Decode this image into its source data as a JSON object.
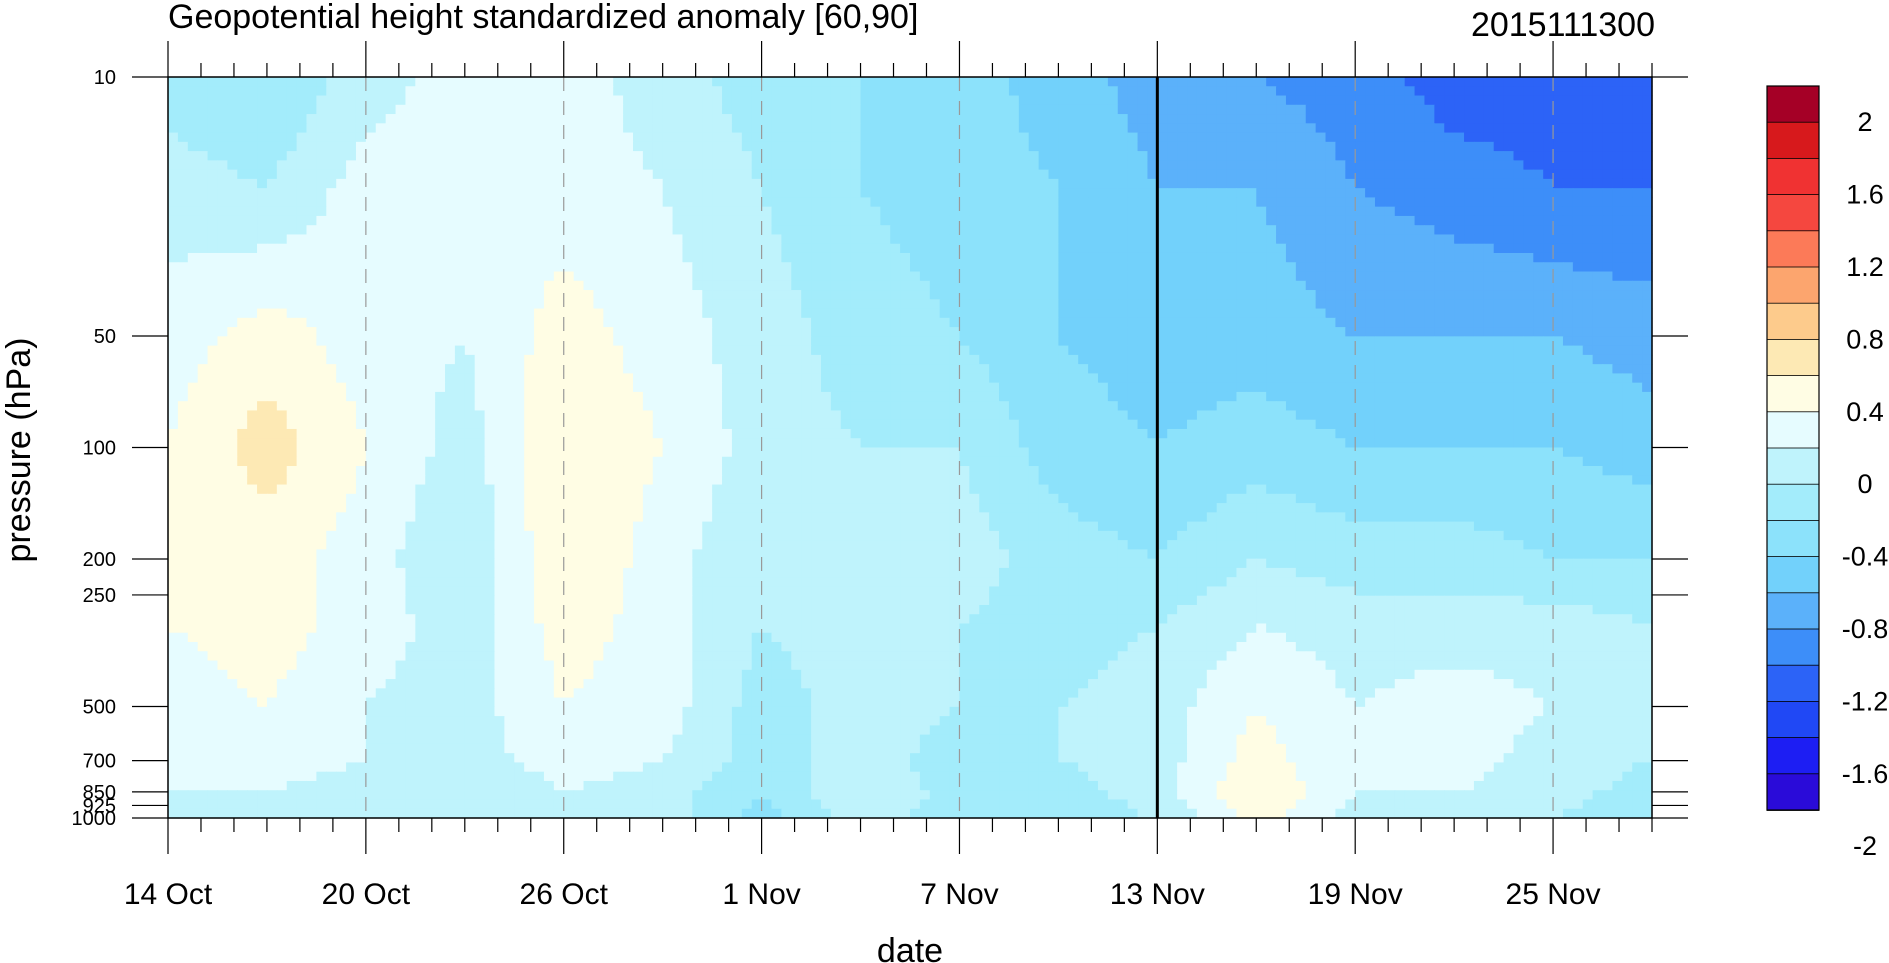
{
  "chart_data": {
    "type": "heatmap",
    "title": "Geopotential height standardized anomaly [60,90]",
    "subtitle": "2015111300",
    "xlabel": "date",
    "ylabel": "pressure (hPa)",
    "x_ticks": [
      "14 Oct",
      "20 Oct",
      "26 Oct",
      "1 Nov",
      "7 Nov",
      "13 Nov",
      "19 Nov",
      "25 Nov"
    ],
    "x_tick_days": [
      0,
      6,
      12,
      18,
      24,
      30,
      36,
      42
    ],
    "x_range_days": [
      0,
      45
    ],
    "y_ticks": [
      "10",
      "50",
      "100",
      "200",
      "250",
      "500",
      "700",
      "850",
      "925",
      "1000"
    ],
    "y_tick_values": [
      10,
      50,
      100,
      200,
      250,
      500,
      700,
      850,
      925,
      1000
    ],
    "y_range": [
      1000,
      10
    ],
    "y_scale": "log",
    "analysis_date_day": 30,
    "colorbar_labels": [
      "2",
      "1.6",
      "1.2",
      "0.8",
      "0.4",
      "0",
      "-0.4",
      "-0.8",
      "-1.2",
      "-1.6",
      "-2"
    ],
    "colorbar_colors": [
      "#a50026",
      "#d7191c",
      "#f03232",
      "#f5473f",
      "#fc7a58",
      "#fca56e",
      "#fdcb8c",
      "#fde9b4",
      "#fffde4",
      "#e6fcff",
      "#bff3fc",
      "#a3ecfb",
      "#8ce2fb",
      "#72d1fb",
      "#5bb1fa",
      "#3d8ef9",
      "#2c63f7",
      "#2048f5",
      "#1d1ef3",
      "#2a0bd9"
    ],
    "field_grid": {
      "days": [
        0,
        3,
        6,
        9,
        12,
        15,
        18,
        21,
        24,
        27,
        30,
        33,
        36,
        39,
        42,
        45
      ],
      "pressure_levels": [
        10,
        20,
        50,
        100,
        200,
        300,
        500,
        700,
        850,
        1000
      ],
      "values": [
        [
          -0.3,
          -0.4,
          -0.1,
          0.1,
          0.1,
          -0.1,
          -0.3,
          -0.4,
          -0.5,
          -0.7,
          -0.9,
          -1.0,
          -1.1,
          -1.3,
          -1.3,
          -1.3
        ],
        [
          -0.1,
          -0.2,
          0.1,
          0.1,
          0.1,
          0.0,
          -0.2,
          -0.4,
          -0.5,
          -0.6,
          -0.8,
          -0.8,
          -1.0,
          -1.1,
          -1.2,
          -1.2
        ],
        [
          0.1,
          0.3,
          0.1,
          0.0,
          0.3,
          0.1,
          -0.1,
          -0.3,
          -0.4,
          -0.6,
          -0.7,
          -0.7,
          -0.8,
          -0.8,
          -0.8,
          -0.9
        ],
        [
          0.2,
          0.5,
          0.2,
          -0.1,
          0.4,
          0.2,
          -0.1,
          -0.2,
          -0.2,
          -0.5,
          -0.6,
          -0.5,
          -0.6,
          -0.6,
          -0.6,
          -0.7
        ],
        [
          0.2,
          0.3,
          0.1,
          -0.2,
          0.4,
          0.1,
          -0.2,
          -0.1,
          -0.1,
          -0.3,
          -0.4,
          -0.2,
          -0.3,
          -0.3,
          -0.4,
          -0.4
        ],
        [
          0.2,
          0.3,
          0.1,
          -0.1,
          0.3,
          0.1,
          -0.2,
          -0.1,
          -0.2,
          -0.3,
          -0.2,
          -0.0,
          -0.1,
          -0.1,
          -0.1,
          -0.2
        ],
        [
          0.1,
          0.2,
          0.0,
          -0.1,
          0.2,
          0.1,
          -0.3,
          -0.1,
          -0.2,
          -0.2,
          -0.1,
          0.2,
          0.0,
          0.1,
          0.0,
          -0.1
        ],
        [
          0.1,
          0.1,
          -0.0,
          -0.1,
          0.1,
          0.0,
          -0.3,
          -0.1,
          -0.3,
          -0.2,
          -0.1,
          0.3,
          0.0,
          0.1,
          -0.1,
          -0.2
        ],
        [
          0.0,
          -0.0,
          -0.1,
          -0.2,
          0.0,
          -0.1,
          -0.4,
          0.0,
          -0.3,
          -0.3,
          -0.1,
          0.4,
          0.0,
          -0.0,
          -0.1,
          -0.3
        ],
        [
          -0.1,
          -0.1,
          -0.2,
          -0.2,
          -0.1,
          -0.1,
          -0.5,
          -0.1,
          -0.3,
          -0.3,
          -0.2,
          0.3,
          -0.1,
          -0.1,
          -0.2,
          -0.4
        ]
      ]
    }
  }
}
